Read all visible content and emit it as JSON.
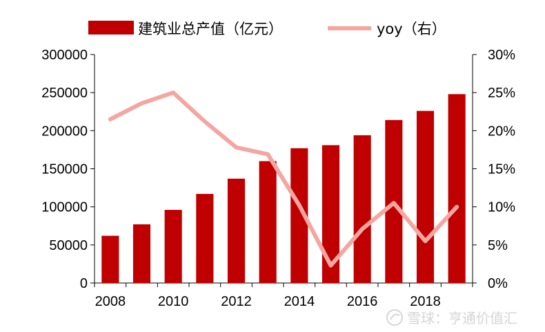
{
  "chart_data": {
    "type": "bar+line",
    "categories": [
      "2008",
      "2009",
      "2010",
      "2011",
      "2012",
      "2013",
      "2014",
      "2015",
      "2016",
      "2017",
      "2018",
      "2019"
    ],
    "x_tick_labels": [
      "2008",
      "2010",
      "2012",
      "2014",
      "2016",
      "2018"
    ],
    "series": [
      {
        "name": "建筑业总产值（亿元）",
        "type": "bar",
        "axis": "left",
        "color": "#c00000",
        "values": [
          62000,
          77000,
          96000,
          117000,
          137000,
          160000,
          177000,
          181000,
          194000,
          214000,
          226000,
          248000
        ]
      },
      {
        "name": "yoy（右）",
        "type": "line",
        "axis": "right",
        "color": "#f4a6a0",
        "values": [
          21.5,
          23.6,
          25.0,
          21.2,
          17.8,
          16.9,
          10.2,
          2.3,
          7.1,
          10.5,
          5.5,
          10.0
        ]
      }
    ],
    "y_left": {
      "min": 0,
      "max": 300000,
      "ticks": [
        "0",
        "50000",
        "100000",
        "150000",
        "200000",
        "250000",
        "300000"
      ]
    },
    "y_right": {
      "min": 0,
      "max": 30,
      "ticks": [
        "0%",
        "5%",
        "10%",
        "15%",
        "20%",
        "25%",
        "30%"
      ]
    },
    "legend_position": "top",
    "grid": false
  },
  "watermark": {
    "text": "雪球：亨通价值汇",
    "icon": "snowball-logo-icon"
  }
}
